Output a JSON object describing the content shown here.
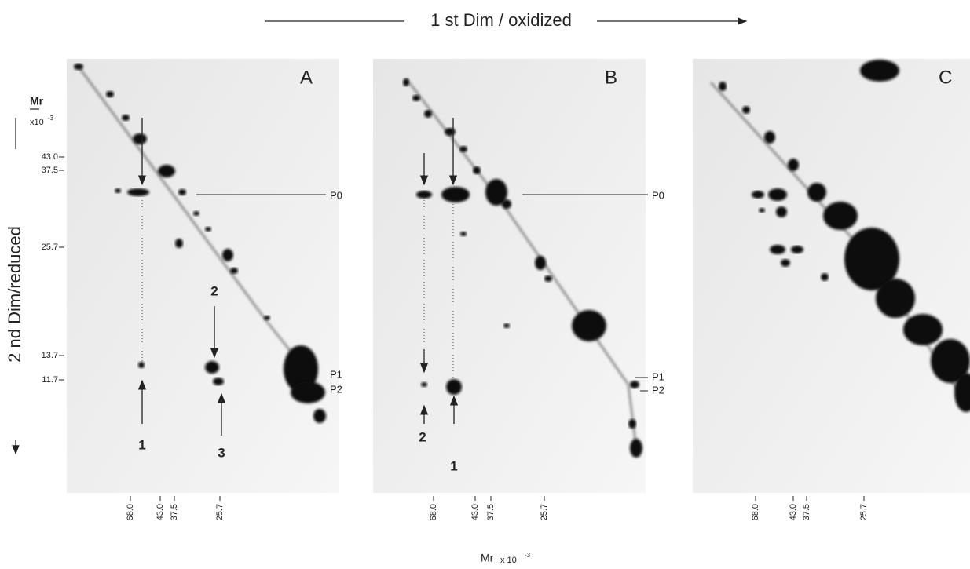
{
  "header": {
    "x_axis_title": "1 st Dim / oxidized",
    "y_axis_title": "2 nd Dim/reduced"
  },
  "y_axis": {
    "unit_symbol": "Mr",
    "unit_scale": "x10",
    "unit_exponent": "-3",
    "labels": [
      "43.0",
      "37.5",
      "25.7",
      "13.7",
      "11.7"
    ]
  },
  "panels": [
    {
      "label": "A",
      "x_labels": [
        "68.0",
        "43.0",
        "37.5",
        "25.7"
      ],
      "spot_labels": [
        "P0",
        "P1",
        "P2"
      ],
      "arrow_labels": [
        "2",
        "1",
        "3"
      ]
    },
    {
      "label": "B",
      "x_labels": [
        "68.0",
        "43.0",
        "37.5",
        "25.7"
      ],
      "spot_labels": [
        "P0",
        "P1",
        "P2"
      ],
      "arrow_labels": [
        "2",
        "1"
      ]
    },
    {
      "label": "C",
      "x_labels": [
        "68.0",
        "43.0",
        "37.5",
        "25.7"
      ]
    }
  ],
  "footer": {
    "unit_symbol": "Mr",
    "unit_scale": "x 10",
    "unit_exponent": "-3"
  }
}
